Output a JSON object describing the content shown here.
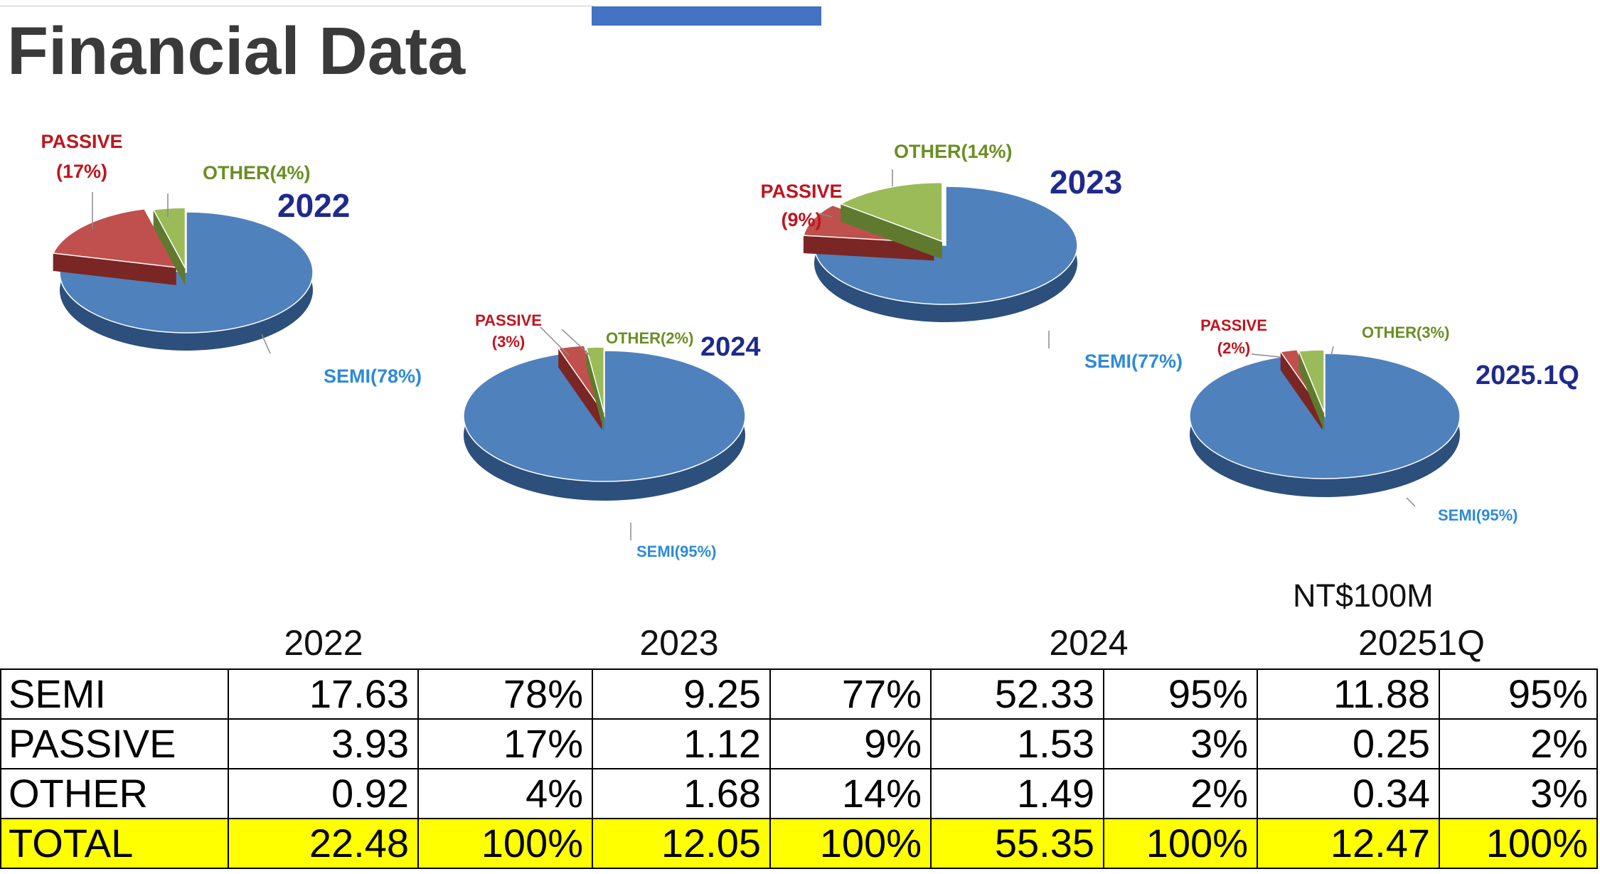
{
  "title": "Financial Data",
  "unit": "NT$100M",
  "colors": {
    "semi": "#4f81bd",
    "passive": "#c0504d",
    "other": "#9bbb59",
    "accent_bar": "#4472c4",
    "total_row": "#ffff00"
  },
  "chart_data": [
    {
      "type": "pie",
      "title": "2022",
      "slices": [
        {
          "label": "SEMI(78%)",
          "value": 78
        },
        {
          "label": "PASSIVE (17%)",
          "value": 17
        },
        {
          "label": "OTHER(4%)",
          "value": 4
        }
      ]
    },
    {
      "type": "pie",
      "title": "2023",
      "slices": [
        {
          "label": "SEMI(77%)",
          "value": 77
        },
        {
          "label": "PASSIVE (9%)",
          "value": 9
        },
        {
          "label": "OTHER(14%)",
          "value": 14
        }
      ]
    },
    {
      "type": "pie",
      "title": "2024",
      "slices": [
        {
          "label": "SEMI(95%)",
          "value": 95
        },
        {
          "label": "PASSIVE (3%)",
          "value": 3
        },
        {
          "label": "OTHER(2%)",
          "value": 2
        }
      ]
    },
    {
      "type": "pie",
      "title": "2025.1Q",
      "slices": [
        {
          "label": "SEMI(95%)",
          "value": 95
        },
        {
          "label": "PASSIVE (2%)",
          "value": 2
        },
        {
          "label": "OTHER(3%)",
          "value": 3
        }
      ]
    }
  ],
  "table": {
    "years": [
      "2022",
      "2023",
      "2024",
      "20251Q"
    ],
    "rows": [
      {
        "label": "SEMI",
        "cells": [
          "17.63",
          "78%",
          "9.25",
          "77%",
          "52.33",
          "95%",
          "11.88",
          "95%"
        ]
      },
      {
        "label": "PASSIVE",
        "cells": [
          "3.93",
          "17%",
          "1.12",
          "9%",
          "1.53",
          "3%",
          "0.25",
          "2%"
        ]
      },
      {
        "label": "OTHER",
        "cells": [
          "0.92",
          "4%",
          "1.68",
          "14%",
          "1.49",
          "2%",
          "0.34",
          "3%"
        ]
      },
      {
        "label": "TOTAL",
        "cells": [
          "22.48",
          "100%",
          "12.05",
          "100%",
          "55.35",
          "100%",
          "12.47",
          "100%"
        ]
      }
    ]
  }
}
